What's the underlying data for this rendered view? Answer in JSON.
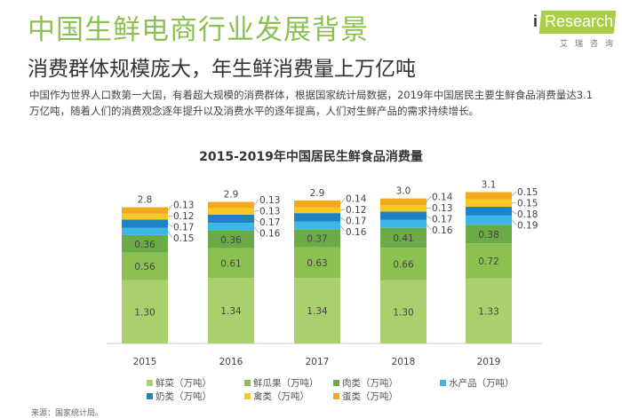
{
  "header": {
    "title": "中国生鲜电商行业发展背景",
    "subtitle": "消费群体规模庞大，年生鲜消费量上万亿吨",
    "description": "中国作为世界人口数第一大国，有着超大规模的消费群体，根据国家统计局数据，2019年中国居民主要生鲜食品消费量达3.1万亿吨，随着人们的消费观念逐年提升以及消费水平的逐年提高，人们对生鲜产品的需求持续增长。"
  },
  "logo": {
    "text": "iResearch",
    "sub": "艾瑞咨询"
  },
  "chart_data": {
    "type": "bar",
    "stacked": true,
    "title": "2015-2019年中国居民生鲜食品消费量",
    "categories": [
      "2015",
      "2016",
      "2017",
      "2018",
      "2019"
    ],
    "totals": [
      "2.8",
      "2.9",
      "2.9",
      "3.0",
      "3.1"
    ],
    "series": [
      {
        "name": "鲜菜（万吨）",
        "color": "#a9d06c",
        "values": [
          1.3,
          1.34,
          1.34,
          1.3,
          1.33
        ]
      },
      {
        "name": "鲜瓜果（万吨）",
        "color": "#8cc152",
        "values": [
          0.56,
          0.61,
          0.63,
          0.66,
          0.72
        ]
      },
      {
        "name": "肉类（万吨）",
        "color": "#6aab48",
        "values": [
          0.36,
          0.36,
          0.37,
          0.41,
          0.38
        ]
      },
      {
        "name": "水产品（万吨）",
        "color": "#3bb8e6",
        "values": [
          0.15,
          0.16,
          0.16,
          0.16,
          0.19
        ]
      },
      {
        "name": "奶类（万吨）",
        "color": "#1f82c4",
        "values": [
          0.17,
          0.17,
          0.17,
          0.17,
          0.18
        ]
      },
      {
        "name": "禽类（万吨）",
        "color": "#f7c922",
        "values": [
          0.12,
          0.13,
          0.12,
          0.13,
          0.15
        ]
      },
      {
        "name": "蛋类（万吨）",
        "color": "#f4a81d",
        "values": [
          0.13,
          0.13,
          0.14,
          0.14,
          0.15
        ]
      }
    ],
    "legend": "bottom",
    "grid": false
  },
  "source": "来源：国家统计局。"
}
